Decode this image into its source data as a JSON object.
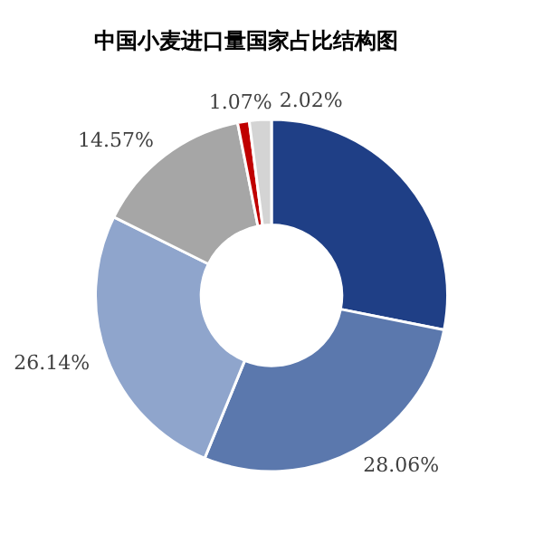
{
  "chart_data": {
    "type": "donut",
    "title": "中国小麦进口量国家占比结构图",
    "categories": [
      null,
      null,
      null,
      null,
      null,
      null
    ],
    "values": [
      28.14,
      28.06,
      26.14,
      14.57,
      1.07,
      2.02
    ],
    "value_labels": [
      null,
      "28.06%",
      "26.14%",
      "14.57%",
      "1.07%",
      "2.02%"
    ],
    "colors": [
      "#1f3f86",
      "#5b78ad",
      "#8fa5cc",
      "#a6a6a6",
      "#c00000",
      "#d4d4d4"
    ],
    "legend": false
  }
}
